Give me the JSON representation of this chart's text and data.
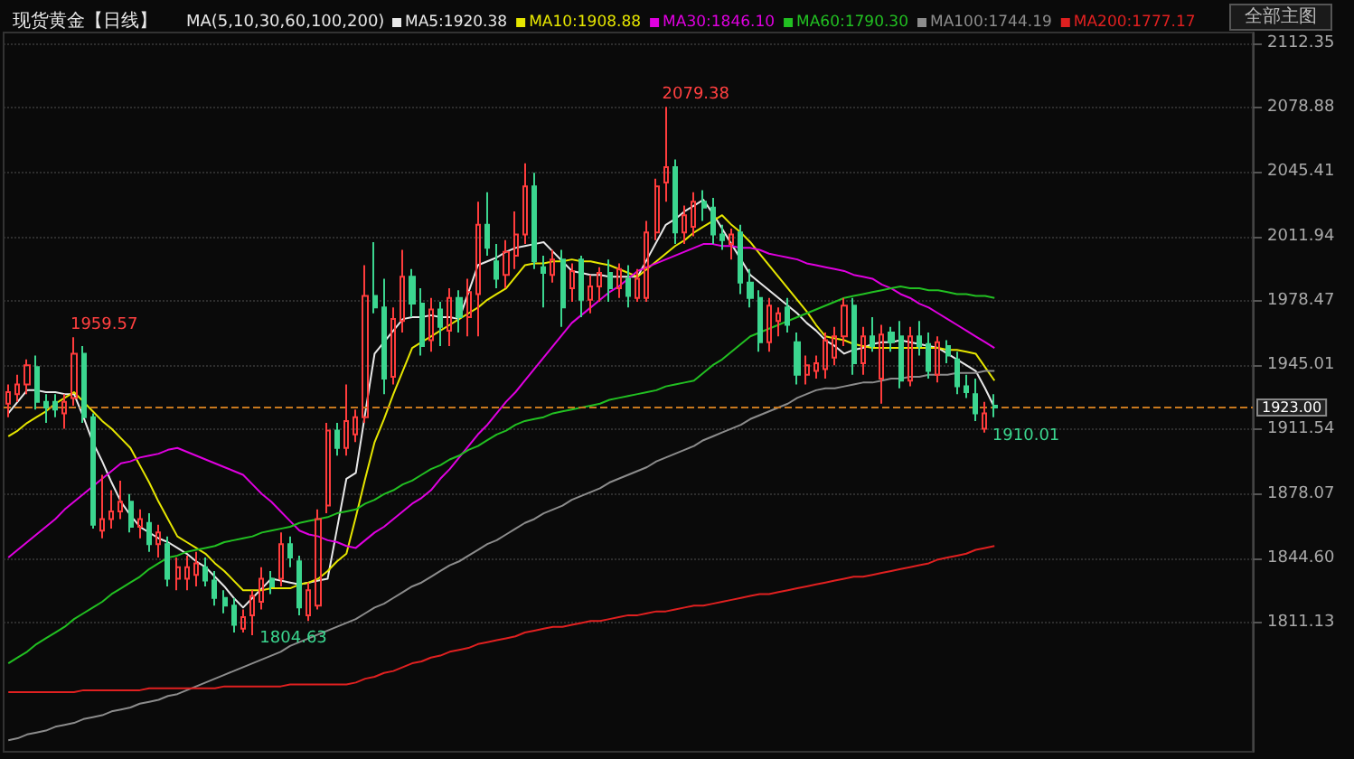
{
  "chart_data": {
    "type": "candlestick",
    "title": "现货黄金【日线】",
    "legend_title": "MA(5,10,30,60,100,200)",
    "categories": [
      null,
      null,
      null,
      null,
      null,
      null,
      null,
      null,
      null,
      null,
      null,
      null,
      null,
      null,
      null,
      null,
      null,
      null,
      null,
      null,
      null,
      null,
      null,
      null,
      null,
      null,
      null,
      null,
      null,
      null,
      null,
      null,
      null,
      null,
      null,
      null,
      null,
      null,
      null,
      null,
      null,
      null,
      null,
      null,
      null,
      null,
      null,
      null,
      null,
      null,
      null,
      null,
      null,
      null,
      null,
      null,
      null,
      null,
      null,
      null,
      null,
      null,
      null,
      null,
      null,
      null,
      null,
      null,
      null,
      null,
      null,
      null,
      null,
      null,
      null,
      null,
      null,
      null,
      null,
      null,
      null,
      null,
      null,
      null,
      null,
      null,
      null,
      null,
      null,
      null,
      null,
      null,
      null,
      null,
      null,
      null,
      null,
      null,
      null,
      null,
      null,
      null,
      null,
      null,
      null,
      null
    ],
    "ohlc": [
      [
        1925,
        1935,
        1918,
        1931
      ],
      [
        1930,
        1940,
        1926,
        1935
      ],
      [
        1935,
        1948,
        1930,
        1945
      ],
      [
        1944,
        1950,
        1922,
        1926
      ],
      [
        1926,
        1930,
        1915,
        1923
      ],
      [
        1926,
        1930,
        1918,
        1922
      ],
      [
        1920,
        1930,
        1912,
        1926
      ],
      [
        1928,
        1959.57,
        1924,
        1951
      ],
      [
        1951,
        1955,
        1915,
        1918
      ],
      [
        1918,
        1920,
        1860,
        1862
      ],
      [
        1859,
        1888,
        1855,
        1865
      ],
      [
        1865,
        1880,
        1860,
        1869
      ],
      [
        1869,
        1885,
        1865,
        1874
      ],
      [
        1874,
        1878,
        1858,
        1861
      ],
      [
        1861,
        1870,
        1855,
        1865
      ],
      [
        1863,
        1868,
        1848,
        1852
      ],
      [
        1852,
        1862,
        1845,
        1858
      ],
      [
        1852,
        1856,
        1830,
        1834
      ],
      [
        1834,
        1845,
        1828,
        1840
      ],
      [
        1834,
        1846,
        1828,
        1840
      ],
      [
        1836,
        1848,
        1830,
        1842
      ],
      [
        1840,
        1845,
        1830,
        1833
      ],
      [
        1833,
        1838,
        1820,
        1824
      ],
      [
        1824,
        1828,
        1816,
        1820
      ],
      [
        1820,
        1824,
        1806,
        1810
      ],
      [
        1808,
        1818,
        1806,
        1814
      ],
      [
        1815,
        1828,
        1804.63,
        1825
      ],
      [
        1822,
        1840,
        1818,
        1834
      ],
      [
        1834,
        1838,
        1826,
        1830
      ],
      [
        1834,
        1858,
        1830,
        1852
      ],
      [
        1852,
        1856,
        1840,
        1845
      ],
      [
        1843,
        1846,
        1815,
        1819
      ],
      [
        1815,
        1832,
        1812,
        1828
      ],
      [
        1820,
        1870,
        1818,
        1865
      ],
      [
        1872,
        1915,
        1868,
        1911
      ],
      [
        1911,
        1915,
        1898,
        1902
      ],
      [
        1902,
        1935,
        1898,
        1916
      ],
      [
        1909,
        1922,
        1905,
        1918
      ],
      [
        1918,
        1997,
        1915,
        1981
      ],
      [
        1981,
        2009,
        1972,
        1975
      ],
      [
        1975,
        1990,
        1930,
        1938
      ],
      [
        1939,
        1975,
        1935,
        1969
      ],
      [
        1968,
        2005,
        1962,
        1991
      ],
      [
        1991,
        1995,
        1970,
        1977
      ],
      [
        1977,
        1985,
        1950,
        1955
      ],
      [
        1958,
        1980,
        1952,
        1974
      ],
      [
        1974,
        1978,
        1955,
        1965
      ],
      [
        1963,
        1985,
        1955,
        1980
      ],
      [
        1980,
        1984,
        1962,
        1970
      ],
      [
        1970,
        1990,
        1960,
        1983
      ],
      [
        1982,
        2030,
        1960,
        2018
      ],
      [
        2018,
        2035,
        2002,
        2006
      ],
      [
        1999,
        2008,
        1985,
        1990
      ],
      [
        1992,
        2010,
        1985,
        2004
      ],
      [
        2002,
        2025,
        1995,
        2013
      ],
      [
        2013,
        2050,
        2008,
        2038
      ],
      [
        2038,
        2045,
        1995,
        1999
      ],
      [
        1996,
        2002,
        1975,
        1993
      ],
      [
        1992,
        2005,
        1988,
        2000
      ],
      [
        2000,
        2005,
        1965,
        1975
      ],
      [
        1985,
        1998,
        1978,
        1994
      ],
      [
        2000,
        2002,
        1970,
        1979
      ],
      [
        1979,
        1992,
        1972,
        1986
      ],
      [
        1986,
        1996,
        1978,
        1993
      ],
      [
        1993,
        2000,
        1978,
        1985
      ],
      [
        1985,
        1998,
        1980,
        1995
      ],
      [
        1990,
        1997,
        1975,
        1981
      ],
      [
        1980,
        1995,
        1978,
        1990
      ],
      [
        1980,
        2020,
        1978,
        2014
      ],
      [
        2014,
        2042,
        2010,
        2038
      ],
      [
        2040,
        2079.38,
        2030,
        2048
      ],
      [
        2048,
        2052,
        2008,
        2014
      ],
      [
        2014,
        2028,
        2008,
        2023
      ],
      [
        2017,
        2035,
        2012,
        2030
      ],
      [
        2030,
        2036,
        2020,
        2027
      ],
      [
        2027,
        2032,
        2008,
        2013
      ],
      [
        2013,
        2018,
        2005,
        2010
      ],
      [
        2008,
        2016,
        2000,
        2013
      ],
      [
        2014,
        2018,
        1982,
        1988
      ],
      [
        1988,
        1995,
        1975,
        1980
      ],
      [
        1980,
        1984,
        1952,
        1957
      ],
      [
        1957,
        1980,
        1952,
        1976
      ],
      [
        1968,
        1975,
        1960,
        1972
      ],
      [
        1975,
        1980,
        1962,
        1966
      ],
      [
        1957,
        1962,
        1935,
        1940
      ],
      [
        1940,
        1950,
        1935,
        1945
      ],
      [
        1942,
        1950,
        1938,
        1946
      ],
      [
        1943,
        1962,
        1938,
        1958
      ],
      [
        1949,
        1965,
        1945,
        1960
      ],
      [
        1960,
        1980,
        1955,
        1976
      ],
      [
        1976,
        1980,
        1940,
        1946
      ],
      [
        1946,
        1965,
        1940,
        1960
      ],
      [
        1960,
        1970,
        1952,
        1955
      ],
      [
        1938,
        1966,
        1925,
        1961
      ],
      [
        1962,
        1965,
        1952,
        1957
      ],
      [
        1960,
        1968,
        1933,
        1937
      ],
      [
        1937,
        1965,
        1934,
        1960
      ],
      [
        1960,
        1968,
        1950,
        1955
      ],
      [
        1956,
        1962,
        1938,
        1942
      ],
      [
        1940,
        1960,
        1936,
        1957
      ],
      [
        1955,
        1958,
        1946,
        1950
      ],
      [
        1948,
        1952,
        1930,
        1934
      ],
      [
        1934,
        1940,
        1928,
        1931
      ],
      [
        1930,
        1938,
        1916,
        1920
      ],
      [
        1912,
        1926,
        1910.01,
        1920
      ],
      [
        1924,
        1930,
        1918,
        1923
      ]
    ],
    "colors": [
      "#ff3c3c",
      "#ff3c3c",
      "#ff3c3c",
      "#3bd68f",
      "#3bd68f",
      "#3bd68f",
      "#ff3c3c",
      "#ff3c3c",
      "#3bd68f",
      "#3bd68f",
      "#ff3c3c",
      "#ff3c3c",
      "#ff3c3c",
      "#3bd68f",
      "#ff3c3c",
      "#3bd68f",
      "#ff3c3c",
      "#3bd68f",
      "#ff3c3c",
      "#ff3c3c",
      "#ff3c3c",
      "#3bd68f",
      "#3bd68f",
      "#3bd68f",
      "#3bd68f",
      "#ff3c3c",
      "#ff3c3c",
      "#ff3c3c",
      "#3bd68f",
      "#ff3c3c",
      "#3bd68f",
      "#3bd68f",
      "#ff3c3c",
      "#ff3c3c",
      "#ff3c3c",
      "#3bd68f",
      "#ff3c3c",
      "#ff3c3c",
      "#ff3c3c",
      "#3bd68f",
      "#3bd68f",
      "#ff3c3c",
      "#ff3c3c",
      "#3bd68f",
      "#3bd68f",
      "#ff3c3c",
      "#3bd68f",
      "#ff3c3c",
      "#3bd68f",
      "#ff3c3c",
      "#ff3c3c",
      "#3bd68f",
      "#3bd68f",
      "#ff3c3c",
      "#ff3c3c",
      "#ff3c3c",
      "#3bd68f",
      "#3bd68f",
      "#ff3c3c",
      "#3bd68f",
      "#ff3c3c",
      "#3bd68f",
      "#ff3c3c",
      "#ff3c3c",
      "#3bd68f",
      "#ff3c3c",
      "#3bd68f",
      "#ff3c3c",
      "#ff3c3c",
      "#ff3c3c",
      "#ff3c3c",
      "#3bd68f",
      "#ff3c3c",
      "#ff3c3c",
      "#3bd68f",
      "#3bd68f",
      "#3bd68f",
      "#ff3c3c",
      "#3bd68f",
      "#3bd68f",
      "#3bd68f",
      "#ff3c3c",
      "#ff3c3c",
      "#3bd68f",
      "#3bd68f",
      "#ff3c3c",
      "#ff3c3c",
      "#ff3c3c",
      "#ff3c3c",
      "#ff3c3c",
      "#3bd68f",
      "#ff3c3c",
      "#3bd68f",
      "#ff3c3c",
      "#3bd68f",
      "#3bd68f",
      "#ff3c3c",
      "#3bd68f",
      "#3bd68f",
      "#ff3c3c",
      "#3bd68f",
      "#3bd68f",
      "#3bd68f",
      "#3bd68f",
      "#ff3c3c",
      "#3bd68f"
    ],
    "series": [
      {
        "type": "line",
        "name": "MA5:1920.38",
        "color": "#e8e8e8",
        "values": [
          1920,
          1926,
          1932,
          1932,
          1931,
          1931,
          1930,
          1930,
          1918,
          1905,
          1895,
          1884,
          1874,
          1867,
          1861,
          1858,
          1855,
          1853,
          1850,
          1847,
          1843,
          1840,
          1835,
          1830,
          1824,
          1819,
          1824,
          1829,
          1834,
          1833,
          1832,
          1831,
          1832,
          1833,
          1834,
          1860,
          1886,
          1889,
          1920,
          1951,
          1957,
          1963,
          1969,
          1970,
          1970,
          1971,
          1970,
          1970,
          1969,
          1983,
          1997,
          1999,
          2001,
          2004,
          2006,
          2007,
          2008,
          2009,
          2004,
          1999,
          1994,
          1993,
          1992,
          1992,
          1991,
          1991,
          1991,
          1991,
          2000,
          2009,
          2018,
          2021,
          2025,
          2028,
          2031,
          2024,
          2016,
          2008,
          2000,
          1992,
          1988,
          1984,
          1980,
          1976,
          1972,
          1967,
          1963,
          1958,
          1955,
          1951,
          1953,
          1954,
          1956,
          1957,
          1957,
          1958,
          1957,
          1956,
          1955,
          1954,
          1951,
          1948,
          1945,
          1942,
          1933,
          1923
        ]
      },
      {
        "type": "line",
        "name": "MA10:1908.88",
        "color": "#e6e600",
        "values": [
          1908,
          1911,
          1915,
          1918,
          1921,
          1925,
          1928,
          1931,
          1926,
          1921,
          1916,
          1912,
          1907,
          1902,
          1893,
          1884,
          1874,
          1865,
          1856,
          1853,
          1850,
          1847,
          1842,
          1838,
          1833,
          1828,
          1828,
          1828,
          1829,
          1829,
          1829,
          1831,
          1832,
          1834,
          1838,
          1843,
          1847,
          1866,
          1886,
          1905,
          1917,
          1930,
          1942,
          1954,
          1957,
          1960,
          1963,
          1966,
          1969,
          1972,
          1975,
          1979,
          1982,
          1985,
          1991,
          1997,
          1998,
          1998,
          1999,
          1999,
          2000,
          1999,
          1999,
          1998,
          1997,
          1995,
          1993,
          1991,
          1995,
          1999,
          2003,
          2007,
          2010,
          2014,
          2017,
          2020,
          2023,
          2018,
          2014,
          2009,
          2003,
          1997,
          1991,
          1985,
          1979,
          1973,
          1966,
          1960,
          1959,
          1958,
          1956,
          1955,
          1954,
          1954,
          1954,
          1954,
          1954,
          1954,
          1954,
          1954,
          1953,
          1953,
          1952,
          1951,
          1944,
          1937
        ]
      },
      {
        "type": "line",
        "name": "MA30:1846.10",
        "color": "#e000e0",
        "values": [
          1845,
          1849,
          1853,
          1857,
          1861,
          1865,
          1870,
          1874,
          1878,
          1882,
          1886,
          1890,
          1894,
          1895,
          1897,
          1898,
          1899,
          1901,
          1902,
          1900,
          1898,
          1896,
          1894,
          1892,
          1890,
          1888,
          1883,
          1878,
          1874,
          1869,
          1864,
          1859,
          1857,
          1856,
          1854,
          1853,
          1851,
          1850,
          1854,
          1858,
          1861,
          1865,
          1869,
          1873,
          1876,
          1880,
          1886,
          1891,
          1897,
          1903,
          1909,
          1914,
          1920,
          1926,
          1931,
          1937,
          1943,
          1949,
          1955,
          1961,
          1967,
          1971,
          1975,
          1979,
          1983,
          1986,
          1990,
          1994,
          1996,
          1998,
          2000,
          2002,
          2004,
          2006,
          2008,
          2008,
          2007,
          2007,
          2006,
          2006,
          2005,
          2003,
          2002,
          2001,
          2000,
          1998,
          1997,
          1996,
          1995,
          1994,
          1992,
          1991,
          1990,
          1987,
          1985,
          1982,
          1980,
          1977,
          1975,
          1972,
          1969,
          1966,
          1963,
          1960,
          1957,
          1954
        ]
      },
      {
        "type": "line",
        "name": "MA60:1790.30",
        "color": "#22c022",
        "values": [
          1790,
          1793,
          1796,
          1800,
          1803,
          1806,
          1809,
          1813,
          1816,
          1819,
          1822,
          1826,
          1829,
          1832,
          1835,
          1839,
          1842,
          1845,
          1846,
          1848,
          1849,
          1850,
          1851,
          1853,
          1854,
          1855,
          1856,
          1858,
          1859,
          1860,
          1861,
          1863,
          1864,
          1865,
          1866,
          1868,
          1869,
          1870,
          1873,
          1875,
          1878,
          1880,
          1883,
          1885,
          1888,
          1891,
          1893,
          1896,
          1898,
          1901,
          1903,
          1906,
          1909,
          1911,
          1914,
          1916,
          1917,
          1918,
          1920,
          1921,
          1922,
          1923,
          1924,
          1925,
          1927,
          1928,
          1929,
          1930,
          1931,
          1932,
          1934,
          1935,
          1936,
          1937,
          1941,
          1945,
          1948,
          1952,
          1956,
          1960,
          1962,
          1964,
          1966,
          1968,
          1970,
          1972,
          1974,
          1976,
          1978,
          1980,
          1981,
          1982,
          1983,
          1984,
          1985,
          1986,
          1985,
          1985,
          1984,
          1984,
          1983,
          1982,
          1982,
          1981,
          1981,
          1980
        ]
      },
      {
        "type": "line",
        "name": "MA100:1744.19",
        "color": "#8c8c8c",
        "values": [
          1750,
          1751,
          1753,
          1754,
          1755,
          1757,
          1758,
          1759,
          1761,
          1762,
          1763,
          1765,
          1766,
          1767,
          1769,
          1770,
          1771,
          1773,
          1774,
          1776,
          1778,
          1780,
          1782,
          1784,
          1786,
          1788,
          1790,
          1792,
          1794,
          1796,
          1799,
          1801,
          1803,
          1805,
          1807,
          1809,
          1811,
          1813,
          1816,
          1819,
          1821,
          1824,
          1827,
          1830,
          1832,
          1835,
          1838,
          1841,
          1843,
          1846,
          1849,
          1852,
          1854,
          1857,
          1860,
          1863,
          1865,
          1868,
          1870,
          1872,
          1875,
          1877,
          1879,
          1881,
          1884,
          1886,
          1888,
          1890,
          1892,
          1895,
          1897,
          1899,
          1901,
          1903,
          1906,
          1908,
          1910,
          1912,
          1914,
          1917,
          1919,
          1921,
          1923,
          1925,
          1928,
          1930,
          1932,
          1933,
          1933,
          1934,
          1935,
          1936,
          1936,
          1937,
          1938,
          1938,
          1939,
          1939,
          1940,
          1940,
          1940,
          1941,
          1941,
          1941,
          1942,
          1942
        ]
      },
      {
        "type": "line",
        "name": "MA200:1777.17",
        "color": "#e02020",
        "values": [
          1775,
          1775,
          1775,
          1775,
          1775,
          1775,
          1775,
          1775,
          1776,
          1776,
          1776,
          1776,
          1776,
          1776,
          1776,
          1777,
          1777,
          1777,
          1777,
          1777,
          1777,
          1777,
          1777,
          1778,
          1778,
          1778,
          1778,
          1778,
          1778,
          1778,
          1779,
          1779,
          1779,
          1779,
          1779,
          1779,
          1779,
          1780,
          1782,
          1783,
          1785,
          1786,
          1788,
          1790,
          1791,
          1793,
          1794,
          1796,
          1797,
          1798,
          1800,
          1801,
          1802,
          1803,
          1804,
          1806,
          1807,
          1808,
          1809,
          1809,
          1810,
          1811,
          1812,
          1812,
          1813,
          1814,
          1815,
          1815,
          1816,
          1817,
          1817,
          1818,
          1819,
          1820,
          1820,
          1821,
          1822,
          1823,
          1824,
          1825,
          1826,
          1826,
          1827,
          1828,
          1829,
          1830,
          1831,
          1832,
          1833,
          1834,
          1835,
          1835,
          1836,
          1837,
          1838,
          1839,
          1840,
          1841,
          1842,
          1844,
          1845,
          1846,
          1847,
          1849,
          1850,
          1851
        ]
      }
    ],
    "ylim": [
      1744,
      2118
    ],
    "yticks": [
      2112.35,
      2078.88,
      2045.41,
      2011.94,
      1978.47,
      1945.01,
      1911.54,
      1878.07,
      {
        "value": 1844.6,
        "label": "1844.60"
      },
      1811.13
    ],
    "grid": "y",
    "legend": "top",
    "tick_labels": "y",
    "marker": "none",
    "line_style": "solid",
    "ref_lines": [
      {
        "axis": "y",
        "value": 1923,
        "label": "1923.00",
        "color": "#c8781e",
        "line_style": "dashed"
      }
    ],
    "annotations": [
      "1959.57",
      "1804.63",
      "2079.38",
      "1910.01",
      "全部主图"
    ]
  }
}
